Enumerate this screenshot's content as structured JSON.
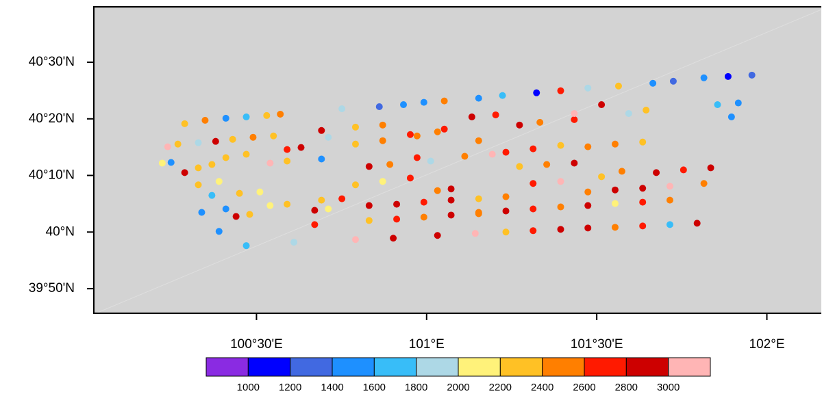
{
  "chart_data": {
    "type": "scatter",
    "xlim": [
      100.022,
      102.16
    ],
    "ylim": [
      39.761,
      40.663
    ],
    "xticks": [
      {
        "value": 100.5,
        "label": "100°30'E"
      },
      {
        "value": 101,
        "label": "101°E"
      },
      {
        "value": 101.5,
        "label": "101°30'E"
      },
      {
        "value": 102,
        "label": "102°E"
      }
    ],
    "yticks": [
      {
        "value": 39.8333,
        "label": "39°50'N"
      },
      {
        "value": 40,
        "label": "40°N"
      },
      {
        "value": 40.1667,
        "label": "40°10'N"
      },
      {
        "value": 40.3333,
        "label": "40°20'N"
      },
      {
        "value": 40.5,
        "label": "40°30'N"
      }
    ],
    "levels": [
      1000,
      1200,
      1400,
      1600,
      1800,
      2000,
      2200,
      2400,
      2600,
      2800,
      3000
    ],
    "colors": [
      "#8a2be2",
      "#0000ff",
      "#4169e1",
      "#1e90ff",
      "#38bdf8",
      "#add8e6",
      "#fff27a",
      "#ffc125",
      "#ff7f00",
      "#ff1a00",
      "#cd0000",
      "#ffb5b5"
    ],
    "background": "#d3d3d3",
    "x": [
      100.239,
      100.223,
      100.249,
      100.289,
      100.329,
      100.369,
      100.289,
      100.349,
      100.41,
      100.47,
      100.53,
      100.57,
      100.269,
      100.329,
      100.38,
      100.43,
      100.49,
      100.55,
      100.59,
      100.631,
      100.691,
      100.41,
      100.47,
      100.54,
      100.59,
      100.329,
      100.39,
      100.45,
      100.51,
      100.369,
      100.41,
      100.44,
      100.48,
      100.54,
      100.59,
      100.339,
      100.39,
      100.47,
      100.61,
      100.671,
      100.711,
      100.691,
      100.751,
      100.671,
      100.691,
      100.711,
      100.751,
      100.861,
      100.932,
      100.992,
      101.052,
      101.153,
      101.223,
      101.323,
      101.394,
      101.474,
      101.564,
      101.665,
      101.725,
      101.815,
      101.886,
      101.956,
      100.791,
      100.871,
      100.952,
      101.032,
      101.133,
      101.203,
      101.273,
      101.333,
      101.434,
      101.514,
      101.594,
      101.645,
      100.791,
      100.871,
      100.972,
      101.052,
      101.153,
      101.233,
      101.313,
      101.394,
      101.474,
      101.554,
      101.635,
      100.831,
      100.892,
      100.972,
      101.012,
      101.112,
      101.193,
      101.273,
      101.353,
      101.434,
      101.514,
      101.574,
      101.675,
      101.755,
      101.835,
      100.791,
      100.871,
      100.952,
      101.032,
      101.072,
      101.153,
      101.233,
      101.313,
      101.394,
      101.474,
      101.554,
      101.635,
      101.715,
      101.815,
      100.831,
      100.912,
      100.992,
      101.072,
      101.153,
      101.233,
      101.313,
      101.394,
      101.474,
      101.554,
      101.635,
      101.715,
      100.831,
      100.912,
      100.992,
      101.072,
      101.153,
      100.791,
      100.902,
      101.032,
      101.143,
      101.233,
      101.313,
      101.394,
      101.474,
      101.554,
      101.635,
      101.715,
      101.795,
      101.434,
      101.896,
      101.916,
      101.855
    ],
    "y": [
      40.251,
      40.203,
      40.205,
      40.175,
      40.189,
      40.199,
      40.319,
      40.329,
      40.335,
      40.339,
      40.343,
      40.347,
      40.259,
      40.263,
      40.267,
      40.273,
      40.279,
      40.283,
      40.243,
      40.249,
      40.299,
      40.219,
      40.229,
      40.203,
      40.209,
      40.139,
      40.149,
      40.114,
      40.118,
      40.108,
      40.068,
      40.046,
      40.052,
      40.078,
      40.082,
      40.058,
      40.002,
      39.96,
      39.97,
      40.064,
      40.068,
      40.094,
      40.098,
      40.022,
      40.215,
      40.279,
      40.363,
      40.369,
      40.375,
      40.382,
      40.386,
      40.394,
      40.402,
      40.41,
      40.416,
      40.424,
      40.43,
      40.438,
      40.444,
      40.454,
      40.458,
      40.462,
      40.309,
      40.315,
      40.287,
      40.295,
      40.339,
      40.345,
      40.315,
      40.323,
      40.331,
      40.375,
      40.349,
      40.359,
      40.259,
      40.269,
      40.283,
      40.303,
      40.269,
      40.235,
      40.245,
      40.255,
      40.251,
      40.259,
      40.265,
      40.193,
      40.199,
      40.219,
      40.209,
      40.223,
      40.229,
      40.193,
      40.199,
      40.203,
      40.163,
      40.179,
      40.175,
      40.183,
      40.189,
      40.139,
      40.149,
      40.159,
      40.122,
      40.127,
      40.098,
      40.104,
      40.143,
      40.149,
      40.118,
      40.124,
      40.129,
      40.135,
      40.143,
      40.078,
      40.082,
      40.088,
      40.094,
      40.058,
      40.062,
      40.068,
      40.074,
      40.078,
      40.084,
      40.088,
      40.094,
      40.034,
      40.038,
      40.044,
      40.05,
      40.054,
      39.978,
      39.982,
      39.99,
      39.996,
      40,
      40.004,
      40.008,
      40.012,
      40.014,
      40.018,
      40.022,
      40.026,
      40.349,
      40.339,
      40.38,
      40.375
    ],
    "values": [
      3100,
      2100,
      1500,
      2800,
      2300,
      2200,
      2300,
      2400,
      1500,
      1700,
      2300,
      2500,
      2200,
      1900,
      2900,
      2300,
      2400,
      2300,
      2600,
      2900,
      2900,
      2200,
      2300,
      3100,
      2300,
      2200,
      2100,
      2200,
      2000,
      1600,
      1500,
      2900,
      2300,
      2000,
      2300,
      1500,
      1500,
      1600,
      1900,
      2900,
      2100,
      2300,
      2600,
      2600,
      1500,
      1800,
      1900,
      1300,
      1400,
      1500,
      2400,
      1500,
      1700,
      1100,
      2600,
      1800,
      2300,
      1400,
      1200,
      1400,
      1100,
      1300,
      2300,
      2500,
      2600,
      2500,
      2900,
      2600,
      2900,
      2500,
      2700,
      2900,
      1800,
      2300,
      2300,
      2500,
      2400,
      2700,
      2500,
      2700,
      2600,
      2200,
      2500,
      2500,
      2300,
      2900,
      2400,
      2600,
      1800,
      2400,
      3100,
      2300,
      2400,
      2900,
      2200,
      2500,
      2900,
      2700,
      2800,
      2200,
      2000,
      2600,
      2400,
      2900,
      2200,
      2400,
      2600,
      3100,
      2500,
      2900,
      2800,
      3100,
      2500,
      2800,
      2900,
      2600,
      2800,
      2500,
      2900,
      2700,
      2400,
      2900,
      2100,
      2700,
      2400,
      2300,
      2600,
      2400,
      2900,
      2400,
      3100,
      2900,
      2900,
      3000,
      2200,
      2700,
      2800,
      2800,
      2500,
      2700,
      1700,
      2800,
      3100,
      1400,
      1500,
      1700
    ]
  }
}
